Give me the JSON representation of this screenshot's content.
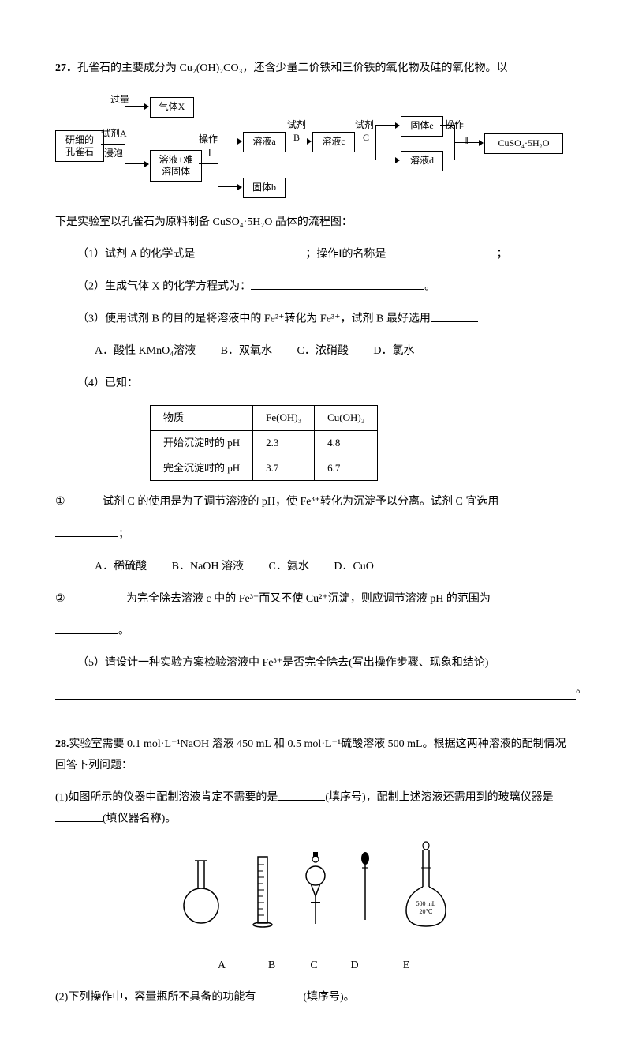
{
  "q27": {
    "num": "27．",
    "intro": "孔雀石的主要成分为 Cu₂(OH)₂CO₃，还含少量二价铁和三价铁的氧化物及硅的氧化物。以",
    "flow": {
      "b_start": "研细的\n孔雀石",
      "lbl_excess": "过量",
      "lbl_A": "试剂A",
      "lbl_soak": "浸泡",
      "b_gasX": "气体X",
      "b_mix": "溶液+难\n溶固体",
      "lbl_op1": "操作",
      "lbl_I": "Ⅰ",
      "b_sol_a": "溶液a",
      "b_solid_b": "固体b",
      "lbl_B_top": "试剂",
      "lbl_B": "B",
      "b_sol_c": "溶液c",
      "lbl_C_top": "试剂",
      "lbl_C": "C",
      "b_solid_e": "固体e",
      "b_sol_d": "溶液d",
      "lbl_op2": "操作",
      "lbl_II": "Ⅱ",
      "b_prod": "CuSO₄·5H₂O"
    },
    "below_flow": "下是实验室以孔雀石为原料制备 CuSO₄·5H₂O 晶体的流程图：",
    "p1a": "（1）试剂 A 的化学式是",
    "p1b": "；操作Ⅰ的名称是",
    "p1c": "；",
    "p2a": "（2）生成气体 X 的化学方程式为：",
    "p2b": "。",
    "p3a": "（3）使用试剂 B 的目的是将溶液中的 Fe²⁺转化为 Fe³⁺，试剂 B 最好选用",
    "p3_opts": {
      "A": "A．酸性 KMnO₄溶液",
      "B": "B．双氧水",
      "C": "C．浓硝酸",
      "D": "D．氯水"
    },
    "p4": "（4）已知：",
    "table": {
      "cols": [
        "物质",
        "Fe(OH)₃",
        "Cu(OH)₂"
      ],
      "rows": [
        [
          "开始沉淀时的 pH",
          "2.3",
          "4.8"
        ],
        [
          "完全沉淀时的 pH",
          "3.7",
          "6.7"
        ]
      ]
    },
    "p4_1_num": "①",
    "p4_1a": "试剂 C 的使用是为了调节溶液的 pH，使 Fe³⁺转化为沉淀予以分离。试剂 C 宜选用",
    "p4_1b": "；",
    "p4_opts": {
      "A": "A．稀硫酸",
      "B": "B．NaOH 溶液",
      "C": "C．氨水",
      "D": "D．CuO"
    },
    "p4_2_num": "②",
    "p4_2a": "为完全除去溶液 c 中的 Fe³⁺而又不使 Cu²⁺沉淀，则应调节溶液 pH 的范围为",
    "p4_2b": "。",
    "p5": "（5）请设计一种实验方案检验溶液中 Fe³⁺是否完全除去(写出操作步骤、现象和结论)",
    "p5_end": "。"
  },
  "q28": {
    "num": "28.",
    "intro": "实验室需要 0.1 mol·L⁻¹NaOH 溶液 450 mL 和 0.5 mol·L⁻¹硫酸溶液 500 mL。根据这两种溶液的配制情况回答下列问题：",
    "p1a": "(1)如图所示的仪器中配制溶液肯定不需要的是",
    "p1b": "(填序号)，配制上述溶液还需用到的玻璃仪器是",
    "p1c": "(填仪器名称)。",
    "inst_labels": [
      "A",
      "B",
      "C",
      "D",
      "E"
    ],
    "vol_flask_label": "500 mL\n20℃",
    "p2a": "(2)下列操作中，容量瓶所不具备的功能有",
    "p2b": "(填序号)。"
  }
}
